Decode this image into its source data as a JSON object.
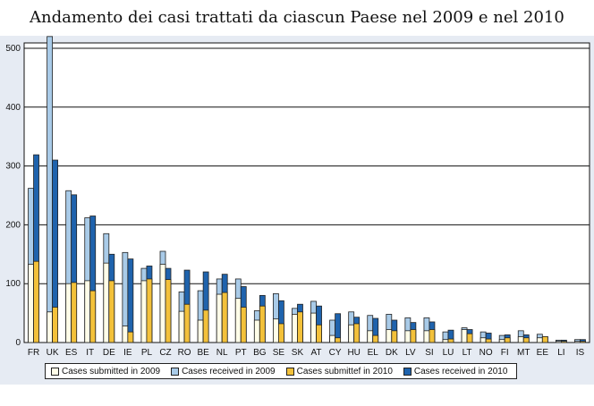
{
  "title": "Andamento dei casi trattati da ciascun Paese nel 2009 e nel 2010",
  "chart_data": {
    "type": "bar",
    "categories": [
      "FR",
      "UK",
      "ES",
      "IT",
      "DE",
      "IE",
      "PL",
      "CZ",
      "RO",
      "BE",
      "NL",
      "PT",
      "BG",
      "SE",
      "SK",
      "AT",
      "CY",
      "HU",
      "EL",
      "DK",
      "LV",
      "SI",
      "LU",
      "LT",
      "NO",
      "FI",
      "MT",
      "EE",
      "LI",
      "IS"
    ],
    "series": [
      {
        "name": "Cases submitted in 2009",
        "color": "#fffde8",
        "values": [
          133,
          52,
          100,
          105,
          135,
          28,
          105,
          133,
          53,
          38,
          82,
          75,
          38,
          40,
          48,
          50,
          12,
          30,
          20,
          22,
          20,
          20,
          5,
          22,
          8,
          5,
          10,
          8,
          2,
          2
        ]
      },
      {
        "name": "Cases received in 2009",
        "color": "#a9cbe8",
        "values": [
          262,
          520,
          258,
          212,
          185,
          153,
          126,
          155,
          86,
          88,
          108,
          108,
          54,
          83,
          58,
          70,
          38,
          52,
          46,
          48,
          42,
          42,
          18,
          25,
          18,
          12,
          20,
          14,
          4,
          5
        ]
      },
      {
        "name": "Cases submittef in 2010",
        "color": "#f3c13a",
        "values": [
          138,
          60,
          102,
          88,
          105,
          18,
          108,
          107,
          65,
          55,
          85,
          60,
          62,
          32,
          52,
          30,
          8,
          32,
          12,
          20,
          22,
          22,
          6,
          15,
          6,
          8,
          8,
          10,
          2,
          2
        ]
      },
      {
        "name": "Cases received in 2010",
        "color": "#1f63ad",
        "values": [
          319,
          310,
          251,
          215,
          150,
          142,
          130,
          126,
          123,
          120,
          116,
          95,
          80,
          71,
          65,
          62,
          49,
          43,
          41,
          38,
          34,
          35,
          21,
          22,
          16,
          13,
          13,
          10,
          4,
          5
        ]
      }
    ],
    "xlabel": "",
    "ylabel": "",
    "ylim": [
      0,
      500
    ],
    "yticks": [
      0,
      100,
      200,
      300,
      400,
      500
    ],
    "grid": true,
    "legend": "bottom"
  }
}
